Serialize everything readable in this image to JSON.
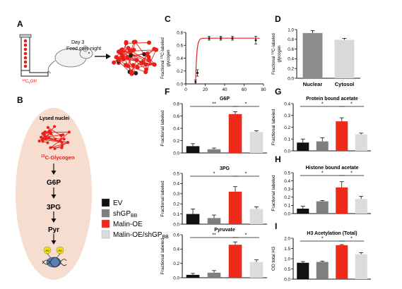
{
  "colors": {
    "EV": "#111111",
    "shGP": "#7f7f7f",
    "MalinOE": "#ee2a1b",
    "MalinOE_shGP": "#dcdcdc",
    "nucleus": "#f7dcd0",
    "glycogen": "#e8201a",
    "accent_red": "#e8201a"
  },
  "panelA": {
    "letter": "A",
    "label_line1": "Day 3",
    "label_line2": "Feed over-night",
    "tube_label_sup": "13",
    "tube_label": "C",
    "tube_label_sub": "6",
    "tube_label_end": "GH"
  },
  "panelB": {
    "letter": "B",
    "header": "Lysed nuclei",
    "glycogen_sup": "13",
    "glycogen_label": "C-Glycogen",
    "steps": [
      "G6P",
      "3PG",
      "Pyr"
    ],
    "acetyl": "Ac"
  },
  "legend": [
    {
      "label": "EV",
      "sub": "",
      "color_key": "EV"
    },
    {
      "label": "shGP",
      "sub": "BB",
      "color_key": "shGP"
    },
    {
      "label": "Malin-OE",
      "sub": "",
      "color_key": "MalinOE"
    },
    {
      "label": "Malin-OE/shGP",
      "sub": "BB",
      "color_key": "MalinOE_shGP"
    }
  ],
  "chart_data": [
    {
      "panel": "C",
      "type": "line",
      "ylabel_pre": "Fractional ",
      "ylabel_sup": "13",
      "ylabel_post": "C-labeled",
      "ylabel2": "glycogen",
      "xlim": [
        0,
        80
      ],
      "ylim": [
        0,
        0.8
      ],
      "xticks": [
        "0",
        "20",
        "40",
        "60",
        "80"
      ],
      "yticks": [
        "0.0",
        "0.2",
        "0.4",
        "0.6",
        "0.8"
      ],
      "points": [
        {
          "x": 10,
          "y": 0.03,
          "err": 0.03
        },
        {
          "x": 12,
          "y": 0.17,
          "err": 0.05
        },
        {
          "x": 24,
          "y": 0.71,
          "err": 0.03
        },
        {
          "x": 36,
          "y": 0.71,
          "err": 0.03
        },
        {
          "x": 48,
          "y": 0.71,
          "err": 0.03
        },
        {
          "x": 72,
          "y": 0.68,
          "err": 0.06
        }
      ],
      "fit_plateau": 0.71,
      "fit_x0": 10,
      "fit_k": 0.8
    },
    {
      "panel": "D",
      "type": "bar",
      "ylabel_pre": "Fractional ",
      "ylabel_sup": "13",
      "ylabel_post": "C-labeled",
      "ylabel2": "glycogen",
      "categories": [
        "Nuclear",
        "Cytosol"
      ],
      "values": [
        0.93,
        0.79
      ],
      "errors": [
        0.05,
        0.03
      ],
      "colors": [
        "#8c8c8c",
        "#d9d9d9"
      ],
      "ylim": [
        0,
        1.0
      ],
      "yticks": [
        "0.0",
        "0.2",
        "0.4",
        "0.6",
        "0.8",
        "1.0"
      ]
    },
    {
      "panel": "F",
      "type": "bar",
      "title": "G6P",
      "ylabel": "Fractional labeled",
      "values": [
        0.11,
        0.06,
        0.63,
        0.34
      ],
      "errors": [
        0.04,
        0.02,
        0.04,
        0.02
      ],
      "ylim": [
        0,
        0.8
      ],
      "yticks": [
        "0.0",
        "0.2",
        "0.4",
        "0.6",
        "0.8"
      ],
      "sig": [
        {
          "from": 0,
          "to": 2,
          "label": "**"
        },
        {
          "from": 2,
          "to": 3,
          "label": "*"
        }
      ]
    },
    {
      "panel": "3PG",
      "type": "bar",
      "title": "3PG",
      "ylabel": "Fractional labeled",
      "values": [
        0.1,
        0.06,
        0.32,
        0.15
      ],
      "errors": [
        0.05,
        0.03,
        0.05,
        0.02
      ],
      "ylim": [
        0,
        0.5
      ],
      "yticks": [
        "0.0",
        "0.1",
        "0.2",
        "0.3",
        "0.4",
        "0.5"
      ],
      "sig": [
        {
          "from": 0,
          "to": 2,
          "label": "*"
        },
        {
          "from": 2,
          "to": 3,
          "label": "*"
        }
      ]
    },
    {
      "panel": "Pyruvate",
      "type": "bar",
      "title": "Pyruvate",
      "ylabel": "Fractional labeled",
      "values": [
        0.04,
        0.07,
        0.46,
        0.22
      ],
      "errors": [
        0.02,
        0.03,
        0.04,
        0.03
      ],
      "ylim": [
        0,
        0.6
      ],
      "yticks": [
        "0.0",
        "0.2",
        "0.4",
        "0.6"
      ],
      "sig": [
        {
          "from": 0,
          "to": 2,
          "label": "**"
        },
        {
          "from": 2,
          "to": 3,
          "label": "*"
        }
      ]
    },
    {
      "panel": "G",
      "type": "bar",
      "title": "Protein bound acetate",
      "ylabel": "Fractional labeled",
      "values": [
        0.07,
        0.08,
        0.25,
        0.14
      ],
      "errors": [
        0.03,
        0.03,
        0.03,
        0.01
      ],
      "ylim": [
        0,
        0.4
      ],
      "yticks": [
        "0.0",
        "0.1",
        "0.2",
        "0.3",
        "0.4"
      ],
      "sig": [
        {
          "from": 0,
          "to": 2,
          "label": "*"
        },
        {
          "from": 2,
          "to": 3,
          "label": "*"
        }
      ]
    },
    {
      "panel": "H",
      "type": "bar",
      "title": "Histone bound acetate",
      "ylabel": "Fractional labeled",
      "values": [
        0.06,
        0.15,
        0.32,
        0.18
      ],
      "errors": [
        0.03,
        0.01,
        0.07,
        0.03
      ],
      "ylim": [
        0,
        0.5
      ],
      "yticks": [
        "0.0",
        "0.1",
        "0.2",
        "0.3",
        "0.4",
        "0.5"
      ],
      "sig": [
        {
          "from": 0,
          "to": 2,
          "label": "*"
        },
        {
          "from": 2,
          "to": 3,
          "label": "*"
        }
      ]
    },
    {
      "panel": "I",
      "type": "bar",
      "title": "H3 Acetylation  (Total)",
      "ylabel": "OD total H3",
      "values": [
        0.8,
        0.84,
        1.66,
        1.22
      ],
      "errors": [
        0.06,
        0.04,
        0.03,
        0.07
      ],
      "ylim": [
        0,
        2.0
      ],
      "yticks": [
        "0.0",
        "0.5",
        "1.0",
        "1.5",
        "2.0"
      ],
      "sig": [
        {
          "from": 0,
          "to": 2,
          "label": "*"
        },
        {
          "from": 2,
          "to": 3,
          "label": "*"
        }
      ]
    }
  ]
}
